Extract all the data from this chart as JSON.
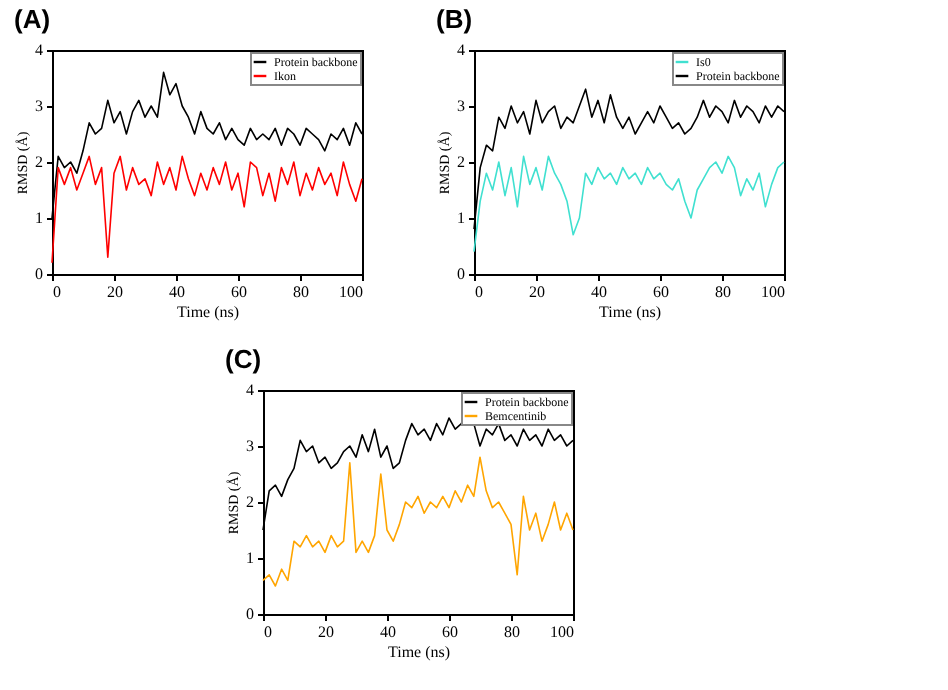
{
  "chart_data": [
    {
      "type": "line",
      "title": "(A)",
      "xlabel": "Time (ns)",
      "ylabel": "RMSD (Å)",
      "xlim": [
        0,
        100
      ],
      "xticks": [
        0,
        20,
        40,
        60,
        80,
        100
      ],
      "ylim": [
        0,
        4
      ],
      "yticks": [
        0,
        1,
        2,
        3,
        4
      ],
      "grid": false,
      "legend": "top right",
      "x": [
        0,
        2,
        4,
        6,
        8,
        10,
        12,
        14,
        16,
        18,
        20,
        22,
        24,
        26,
        28,
        30,
        32,
        34,
        36,
        38,
        40,
        42,
        44,
        46,
        48,
        50,
        52,
        54,
        56,
        58,
        60,
        62,
        64,
        66,
        68,
        70,
        72,
        74,
        76,
        78,
        80,
        82,
        84,
        86,
        88,
        90,
        92,
        94,
        96,
        98,
        100
      ],
      "series": [
        {
          "name": "Protein backbone",
          "color": "#000000",
          "values": [
            1.0,
            2.1,
            1.9,
            2.0,
            1.8,
            2.2,
            2.7,
            2.5,
            2.6,
            3.1,
            2.7,
            2.9,
            2.5,
            2.9,
            3.1,
            2.8,
            3.0,
            2.8,
            3.6,
            3.2,
            3.4,
            3.0,
            2.8,
            2.5,
            2.9,
            2.6,
            2.5,
            2.7,
            2.4,
            2.6,
            2.4,
            2.3,
            2.6,
            2.4,
            2.5,
            2.4,
            2.6,
            2.3,
            2.6,
            2.5,
            2.3,
            2.6,
            2.5,
            2.4,
            2.2,
            2.5,
            2.4,
            2.6,
            2.3,
            2.7,
            2.5
          ]
        },
        {
          "name": "Ikon",
          "color": "#ff0000",
          "values": [
            0.2,
            1.9,
            1.6,
            1.9,
            1.5,
            1.8,
            2.1,
            1.6,
            1.9,
            0.3,
            1.8,
            2.1,
            1.5,
            1.9,
            1.6,
            1.7,
            1.4,
            2.0,
            1.6,
            1.9,
            1.5,
            2.1,
            1.7,
            1.4,
            1.8,
            1.5,
            1.9,
            1.6,
            2.0,
            1.5,
            1.8,
            1.2,
            2.0,
            1.9,
            1.4,
            1.8,
            1.3,
            1.9,
            1.6,
            2.0,
            1.4,
            1.8,
            1.5,
            1.9,
            1.6,
            1.8,
            1.4,
            2.0,
            1.6,
            1.3,
            1.7
          ]
        }
      ]
    },
    {
      "type": "line",
      "title": "(B)",
      "xlabel": "Time (ns)",
      "ylabel": "RMSD (Å)",
      "xlim": [
        0,
        100
      ],
      "xticks": [
        0,
        20,
        40,
        60,
        80,
        100
      ],
      "ylim": [
        0,
        4
      ],
      "yticks": [
        0,
        1,
        2,
        3,
        4
      ],
      "grid": false,
      "legend": "top right",
      "x": [
        0,
        2,
        4,
        6,
        8,
        10,
        12,
        14,
        16,
        18,
        20,
        22,
        24,
        26,
        28,
        30,
        32,
        34,
        36,
        38,
        40,
        42,
        44,
        46,
        48,
        50,
        52,
        54,
        56,
        58,
        60,
        62,
        64,
        66,
        68,
        70,
        72,
        74,
        76,
        78,
        80,
        82,
        84,
        86,
        88,
        90,
        92,
        94,
        96,
        98,
        100
      ],
      "series": [
        {
          "name": "Is0",
          "color": "#40e0d0",
          "values": [
            0.4,
            1.3,
            1.8,
            1.5,
            2.0,
            1.4,
            1.9,
            1.2,
            2.1,
            1.6,
            1.9,
            1.5,
            2.1,
            1.8,
            1.6,
            1.3,
            0.7,
            1.0,
            1.8,
            1.6,
            1.9,
            1.7,
            1.8,
            1.6,
            1.9,
            1.7,
            1.8,
            1.6,
            1.9,
            1.7,
            1.8,
            1.6,
            1.5,
            1.7,
            1.3,
            1.0,
            1.5,
            1.7,
            1.9,
            2.0,
            1.8,
            2.1,
            1.9,
            1.4,
            1.7,
            1.5,
            1.8,
            1.2,
            1.6,
            1.9,
            2.0
          ]
        },
        {
          "name": "Protein backbone",
          "color": "#000000",
          "values": [
            0.8,
            1.9,
            2.3,
            2.2,
            2.8,
            2.6,
            3.0,
            2.7,
            2.9,
            2.5,
            3.1,
            2.7,
            2.9,
            3.0,
            2.6,
            2.8,
            2.7,
            3.0,
            3.3,
            2.8,
            3.1,
            2.7,
            3.2,
            2.8,
            2.6,
            2.8,
            2.5,
            2.7,
            2.9,
            2.7,
            3.0,
            2.8,
            2.6,
            2.7,
            2.5,
            2.6,
            2.8,
            3.1,
            2.8,
            3.0,
            2.9,
            2.7,
            3.1,
            2.8,
            3.0,
            2.9,
            2.7,
            3.0,
            2.8,
            3.0,
            2.9
          ]
        }
      ]
    },
    {
      "type": "line",
      "title": "(C)",
      "xlabel": "Time (ns)",
      "ylabel": "RMSD (Å)",
      "xlim": [
        0,
        100
      ],
      "xticks": [
        0,
        20,
        40,
        60,
        80,
        100
      ],
      "ylim": [
        0,
        4
      ],
      "yticks": [
        0,
        1,
        2,
        3,
        4
      ],
      "grid": false,
      "legend": "top right",
      "x": [
        0,
        2,
        4,
        6,
        8,
        10,
        12,
        14,
        16,
        18,
        20,
        22,
        24,
        26,
        28,
        30,
        32,
        34,
        36,
        38,
        40,
        42,
        44,
        46,
        48,
        50,
        52,
        54,
        56,
        58,
        60,
        62,
        64,
        66,
        68,
        70,
        72,
        74,
        76,
        78,
        80,
        82,
        84,
        86,
        88,
        90,
        92,
        94,
        96,
        98,
        100
      ],
      "series": [
        {
          "name": "Protein backbone",
          "color": "#000000",
          "values": [
            1.5,
            2.2,
            2.3,
            2.1,
            2.4,
            2.6,
            3.1,
            2.9,
            3.0,
            2.7,
            2.8,
            2.6,
            2.7,
            2.9,
            3.0,
            2.8,
            3.2,
            2.9,
            3.3,
            2.8,
            3.0,
            2.6,
            2.7,
            3.1,
            3.4,
            3.2,
            3.3,
            3.1,
            3.4,
            3.2,
            3.5,
            3.3,
            3.4,
            3.7,
            3.4,
            3.0,
            3.3,
            3.2,
            3.4,
            3.1,
            3.2,
            3.0,
            3.3,
            3.1,
            3.2,
            3.0,
            3.3,
            3.1,
            3.2,
            3.0,
            3.1
          ]
        },
        {
          "name": "Bemcentinib",
          "color": "#ffa500",
          "values": [
            0.6,
            0.7,
            0.5,
            0.8,
            0.6,
            1.3,
            1.2,
            1.4,
            1.2,
            1.3,
            1.1,
            1.4,
            1.2,
            1.3,
            2.7,
            1.1,
            1.3,
            1.1,
            1.4,
            2.5,
            1.5,
            1.3,
            1.6,
            2.0,
            1.9,
            2.1,
            1.8,
            2.0,
            1.9,
            2.1,
            1.9,
            2.2,
            2.0,
            2.3,
            2.1,
            2.8,
            2.2,
            1.9,
            2.0,
            1.8,
            1.6,
            0.7,
            2.1,
            1.5,
            1.8,
            1.3,
            1.6,
            2.0,
            1.5,
            1.8,
            1.5
          ]
        }
      ]
    }
  ]
}
